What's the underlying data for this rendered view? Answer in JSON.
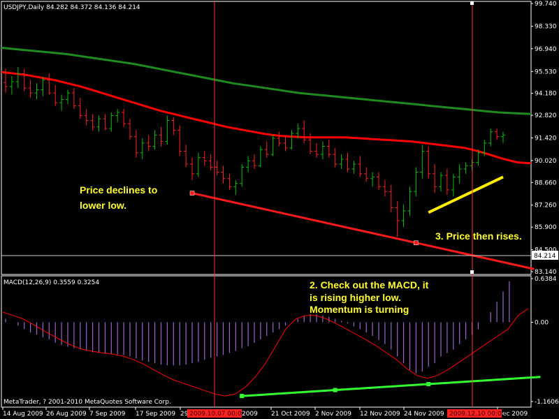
{
  "window": {
    "symbol_header": "USDJPY,Daily  84.282 84.372 84.136 84.214",
    "macd_header": "MACD(12,26,9) 0.3559 0.3254",
    "copyright": "MetaTrader, ? 2001-2010 MetaQuotes Software Corp."
  },
  "colors": {
    "background": "#000000",
    "grid": "#ffffff",
    "bull_bar": "#00c000",
    "bear_bar": "#ff2020",
    "ma_fast": "#ff0000",
    "ma_slow": "#1f8a1f",
    "macd_histogram": "#9966cc",
    "macd_signal": "#ff0000",
    "price_trendline": "#ff1a1a",
    "price_rise_line": "#ffee00",
    "macd_trendline": "#33ff33",
    "annotation_text": "#ffff33",
    "cursor_line": "#ff3333",
    "cursor_label_bg": "#ff2020"
  },
  "price_axis": {
    "labels": [
      "99.740",
      "98.330",
      "96.940",
      "95.530",
      "94.180",
      "92.820",
      "91.420",
      "90.020",
      "88.660",
      "87.260",
      "85.900",
      "84.500",
      "83.140"
    ],
    "current_price": "84.214",
    "range": [
      83.14,
      99.74
    ]
  },
  "macd_axis": {
    "labels": [
      "0.6384",
      "0.00",
      "-1.1606"
    ],
    "range": [
      -1.1606,
      0.6384
    ]
  },
  "time_axis": {
    "labels": [
      "14 Aug 2009",
      "26 Aug 2009",
      "7 Sep 2009",
      "17 Sep 2009",
      "29",
      "21 Oct 2009",
      "2 Nov 2009",
      "12 Nov 2009",
      "24 Nov 2009",
      "Dec 2009"
    ],
    "cursor_labels": [
      "2009.10.07 00:00",
      "2009.12.10 00:00"
    ],
    "tail_label": "2009"
  },
  "annotations": {
    "price_decline": [
      "Price declines to",
      "lower low."
    ],
    "macd_note": [
      "2. Check out the MACD, it",
      "is rising higher low.",
      "Momentum is turning"
    ],
    "price_rise": "3. Price then rises."
  },
  "chart_data": {
    "type": "candlestick",
    "title": "USDJPY,Daily",
    "ohlc_last": {
      "open": 84.282,
      "high": 84.372,
      "low": 84.136,
      "close": 84.214
    },
    "ylim": [
      83.14,
      99.74
    ],
    "bars": [
      {
        "o": 94.85,
        "h": 95.7,
        "l": 94.2,
        "c": 94.6
      },
      {
        "o": 94.6,
        "h": 95.25,
        "l": 94.1,
        "c": 94.9
      },
      {
        "o": 94.9,
        "h": 95.8,
        "l": 94.5,
        "c": 95.4
      },
      {
        "o": 95.4,
        "h": 95.7,
        "l": 94.3,
        "c": 94.5
      },
      {
        "o": 94.5,
        "h": 95.0,
        "l": 93.9,
        "c": 94.2
      },
      {
        "o": 94.2,
        "h": 94.8,
        "l": 93.8,
        "c": 94.4
      },
      {
        "o": 94.4,
        "h": 95.2,
        "l": 94.0,
        "c": 95.0
      },
      {
        "o": 95.0,
        "h": 95.4,
        "l": 94.1,
        "c": 94.2
      },
      {
        "o": 94.2,
        "h": 94.7,
        "l": 93.4,
        "c": 93.6
      },
      {
        "o": 93.6,
        "h": 94.1,
        "l": 93.1,
        "c": 93.8
      },
      {
        "o": 93.8,
        "h": 94.4,
        "l": 93.5,
        "c": 94.2
      },
      {
        "o": 94.2,
        "h": 94.5,
        "l": 93.2,
        "c": 93.4
      },
      {
        "o": 93.4,
        "h": 93.9,
        "l": 92.6,
        "c": 92.8
      },
      {
        "o": 92.8,
        "h": 93.2,
        "l": 92.2,
        "c": 92.5
      },
      {
        "o": 92.5,
        "h": 92.9,
        "l": 91.9,
        "c": 92.1
      },
      {
        "o": 92.1,
        "h": 92.8,
        "l": 91.8,
        "c": 92.6
      },
      {
        "o": 92.6,
        "h": 92.9,
        "l": 91.9,
        "c": 92.0
      },
      {
        "o": 92.0,
        "h": 93.0,
        "l": 91.8,
        "c": 92.8
      },
      {
        "o": 92.8,
        "h": 93.2,
        "l": 92.4,
        "c": 93.0
      },
      {
        "o": 93.0,
        "h": 93.2,
        "l": 92.1,
        "c": 92.3
      },
      {
        "o": 92.3,
        "h": 92.6,
        "l": 91.3,
        "c": 91.5
      },
      {
        "o": 91.5,
        "h": 91.9,
        "l": 90.2,
        "c": 90.5
      },
      {
        "o": 90.5,
        "h": 91.4,
        "l": 90.1,
        "c": 91.1
      },
      {
        "o": 91.1,
        "h": 91.6,
        "l": 90.6,
        "c": 90.9
      },
      {
        "o": 90.9,
        "h": 91.9,
        "l": 90.7,
        "c": 91.6
      },
      {
        "o": 91.6,
        "h": 92.1,
        "l": 90.9,
        "c": 91.2
      },
      {
        "o": 91.2,
        "h": 92.8,
        "l": 91.0,
        "c": 92.5
      },
      {
        "o": 92.5,
        "h": 92.7,
        "l": 91.6,
        "c": 91.9
      },
      {
        "o": 91.9,
        "h": 92.2,
        "l": 90.3,
        "c": 90.6
      },
      {
        "o": 90.6,
        "h": 91.0,
        "l": 89.6,
        "c": 89.8
      },
      {
        "o": 89.8,
        "h": 90.2,
        "l": 88.8,
        "c": 89.2
      },
      {
        "o": 89.2,
        "h": 90.5,
        "l": 89.0,
        "c": 90.2
      },
      {
        "o": 90.2,
        "h": 90.6,
        "l": 89.7,
        "c": 90.0
      },
      {
        "o": 90.0,
        "h": 90.4,
        "l": 89.4,
        "c": 89.6
      },
      {
        "o": 89.6,
        "h": 90.0,
        "l": 89.1,
        "c": 89.3
      },
      {
        "o": 89.3,
        "h": 89.7,
        "l": 88.6,
        "c": 88.9
      },
      {
        "o": 88.9,
        "h": 89.2,
        "l": 88.2,
        "c": 88.4
      },
      {
        "o": 88.4,
        "h": 88.8,
        "l": 87.9,
        "c": 88.6
      },
      {
        "o": 88.6,
        "h": 89.8,
        "l": 88.4,
        "c": 89.6
      },
      {
        "o": 89.6,
        "h": 90.3,
        "l": 89.3,
        "c": 90.0
      },
      {
        "o": 90.0,
        "h": 90.4,
        "l": 89.5,
        "c": 89.7
      },
      {
        "o": 89.7,
        "h": 90.9,
        "l": 89.6,
        "c": 90.7
      },
      {
        "o": 90.7,
        "h": 91.2,
        "l": 90.2,
        "c": 90.4
      },
      {
        "o": 90.4,
        "h": 91.6,
        "l": 90.3,
        "c": 91.4
      },
      {
        "o": 91.4,
        "h": 91.8,
        "l": 90.9,
        "c": 91.1
      },
      {
        "o": 91.1,
        "h": 91.5,
        "l": 90.6,
        "c": 90.8
      },
      {
        "o": 90.8,
        "h": 91.9,
        "l": 90.7,
        "c": 91.7
      },
      {
        "o": 91.7,
        "h": 92.3,
        "l": 91.4,
        "c": 92.0
      },
      {
        "o": 92.0,
        "h": 92.5,
        "l": 91.1,
        "c": 91.3
      },
      {
        "o": 91.3,
        "h": 91.7,
        "l": 90.4,
        "c": 90.6
      },
      {
        "o": 90.6,
        "h": 91.1,
        "l": 90.2,
        "c": 90.4
      },
      {
        "o": 90.4,
        "h": 91.2,
        "l": 90.1,
        "c": 90.9
      },
      {
        "o": 90.9,
        "h": 91.3,
        "l": 90.2,
        "c": 90.4
      },
      {
        "o": 90.4,
        "h": 90.8,
        "l": 89.6,
        "c": 89.8
      },
      {
        "o": 89.8,
        "h": 90.4,
        "l": 89.5,
        "c": 90.1
      },
      {
        "o": 90.1,
        "h": 90.5,
        "l": 89.3,
        "c": 89.5
      },
      {
        "o": 89.5,
        "h": 90.0,
        "l": 89.2,
        "c": 89.8
      },
      {
        "o": 89.8,
        "h": 90.3,
        "l": 89.0,
        "c": 89.2
      },
      {
        "o": 89.2,
        "h": 89.6,
        "l": 88.7,
        "c": 88.9
      },
      {
        "o": 88.9,
        "h": 89.3,
        "l": 88.4,
        "c": 89.0
      },
      {
        "o": 89.0,
        "h": 89.3,
        "l": 88.2,
        "c": 88.4
      },
      {
        "o": 88.4,
        "h": 88.8,
        "l": 87.8,
        "c": 88.1
      },
      {
        "o": 88.1,
        "h": 88.5,
        "l": 86.8,
        "c": 87.1
      },
      {
        "o": 87.1,
        "h": 87.5,
        "l": 85.3,
        "c": 86.3
      },
      {
        "o": 86.3,
        "h": 87.3,
        "l": 85.9,
        "c": 86.9
      },
      {
        "o": 86.9,
        "h": 88.4,
        "l": 86.6,
        "c": 88.1
      },
      {
        "o": 88.1,
        "h": 89.6,
        "l": 87.8,
        "c": 89.3
      },
      {
        "o": 89.3,
        "h": 91.0,
        "l": 88.9,
        "c": 90.6
      },
      {
        "o": 90.6,
        "h": 90.9,
        "l": 88.9,
        "c": 89.2
      },
      {
        "o": 89.2,
        "h": 89.8,
        "l": 88.0,
        "c": 88.4
      },
      {
        "o": 88.4,
        "h": 89.3,
        "l": 88.1,
        "c": 89.1
      },
      {
        "o": 89.1,
        "h": 89.5,
        "l": 87.9,
        "c": 88.2
      },
      {
        "o": 88.2,
        "h": 89.2,
        "l": 87.8,
        "c": 89.0
      },
      {
        "o": 89.0,
        "h": 89.8,
        "l": 88.6,
        "c": 89.5
      },
      {
        "o": 89.5,
        "h": 89.9,
        "l": 89.2,
        "c": 89.7
      },
      {
        "o": 89.7,
        "h": 90.1,
        "l": 89.4,
        "c": 89.9
      },
      {
        "o": 89.9,
        "h": 90.7,
        "l": 89.7,
        "c": 90.5
      },
      {
        "o": 90.5,
        "h": 91.3,
        "l": 90.3,
        "c": 91.1
      },
      {
        "o": 91.1,
        "h": 92.0,
        "l": 90.9,
        "c": 91.8
      },
      {
        "o": 91.8,
        "h": 92.0,
        "l": 91.3,
        "c": 91.5
      },
      {
        "o": 91.5,
        "h": 91.8,
        "l": 91.1,
        "c": 91.6
      }
    ],
    "ma_fast": [
      95.5,
      95.4,
      95.3,
      95.15,
      95.0,
      94.8,
      94.6,
      94.35,
      94.1,
      93.85,
      93.6,
      93.35,
      93.1,
      92.9,
      92.7,
      92.5,
      92.3,
      92.1,
      91.95,
      91.8,
      91.65,
      91.55,
      91.5,
      91.45,
      91.45,
      91.45,
      91.45,
      91.4,
      91.35,
      91.3,
      91.25,
      91.2,
      91.1,
      91.0,
      90.9,
      90.8,
      90.6,
      90.35,
      90.1,
      89.9,
      89.85
    ],
    "ma_slow": [
      97.0,
      96.9,
      96.8,
      96.7,
      96.6,
      96.45,
      96.3,
      96.15,
      96.0,
      95.8,
      95.6,
      95.4,
      95.2,
      95.0,
      94.8,
      94.65,
      94.5,
      94.35,
      94.2,
      94.1,
      94.0,
      93.9,
      93.8,
      93.7,
      93.6,
      93.5,
      93.4,
      93.3,
      93.2,
      93.1,
      93.0,
      92.95,
      92.9
    ],
    "macd": {
      "ylim": [
        -1.1606,
        0.6384
      ],
      "histogram": [
        0.05,
        0.0,
        -0.05,
        -0.1,
        -0.15,
        -0.18,
        -0.22,
        -0.25,
        -0.3,
        -0.33,
        -0.36,
        -0.38,
        -0.4,
        -0.42,
        -0.44,
        -0.45,
        -0.46,
        -0.47,
        -0.47,
        -0.48,
        -0.5,
        -0.53,
        -0.56,
        -0.58,
        -0.6,
        -0.62,
        -0.63,
        -0.63,
        -0.63,
        -0.62,
        -0.6,
        -0.58,
        -0.55,
        -0.52,
        -0.5,
        -0.48,
        -0.45,
        -0.42,
        -0.38,
        -0.35,
        -0.3,
        -0.25,
        -0.2,
        -0.15,
        -0.1,
        -0.05,
        0.0,
        0.05,
        0.1,
        0.12,
        0.12,
        0.1,
        0.08,
        0.05,
        0.02,
        -0.02,
        -0.06,
        -0.1,
        -0.15,
        -0.2,
        -0.26,
        -0.32,
        -0.4,
        -0.5,
        -0.6,
        -0.7,
        -0.75,
        -0.72,
        -0.65,
        -0.6,
        -0.5,
        -0.45,
        -0.4,
        -0.32,
        -0.25,
        -0.18,
        -0.1,
        0.0,
        0.15,
        0.3,
        0.45,
        0.6
      ],
      "signal": [
        0.15,
        0.1,
        0.05,
        -0.03,
        -0.12,
        -0.2,
        -0.28,
        -0.35,
        -0.4,
        -0.43,
        -0.45,
        -0.47,
        -0.5,
        -0.55,
        -0.62,
        -0.7,
        -0.78,
        -0.85,
        -0.9,
        -0.95,
        -1.0,
        -1.05,
        -1.08,
        -1.05,
        -0.95,
        -0.8,
        -0.6,
        -0.35,
        -0.1,
        0.05,
        0.1,
        0.1,
        0.05,
        -0.02,
        -0.1,
        -0.18,
        -0.26,
        -0.35,
        -0.45,
        -0.55,
        -0.68,
        -0.78,
        -0.82,
        -0.78,
        -0.7,
        -0.6,
        -0.5,
        -0.4,
        -0.3,
        -0.2,
        -0.1,
        0.1,
        0.2
      ]
    },
    "price_trendline": {
      "from": {
        "bar": 30,
        "price": 88.0
      },
      "to": {
        "bar": 85,
        "price": 83.3
      }
    },
    "price_trendline_markers": [
      30,
      66
    ],
    "rise_line": {
      "from": {
        "bar": 68,
        "price": 86.8
      },
      "to": {
        "bar": 80,
        "price": 89.0
      }
    },
    "macd_trendline": {
      "from": {
        "bar": 38,
        "value": -1.08
      },
      "to": {
        "bar": 86,
        "value": -0.8
      }
    },
    "macd_trendline_markers": [
      38,
      53,
      68
    ]
  }
}
